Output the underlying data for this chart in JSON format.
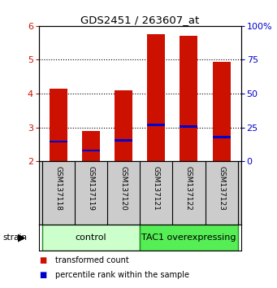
{
  "title": "GDS2451 / 263607_at",
  "samples": [
    "GSM137118",
    "GSM137119",
    "GSM137120",
    "GSM137121",
    "GSM137122",
    "GSM137123"
  ],
  "bar_bottom": 2.0,
  "transformed_counts": [
    4.15,
    2.9,
    4.1,
    5.75,
    5.72,
    4.95
  ],
  "percentile_values": [
    2.58,
    2.32,
    2.62,
    3.07,
    3.03,
    2.72
  ],
  "ylim": [
    2.0,
    6.0
  ],
  "yticks_left": [
    2,
    3,
    4,
    5,
    6
  ],
  "yticks_right": [
    0,
    25,
    50,
    75,
    100
  ],
  "yticks_right_pos": [
    2.0,
    3.0,
    4.0,
    5.0,
    6.0
  ],
  "groups": [
    {
      "label": "control",
      "indices": [
        0,
        1,
        2
      ],
      "color": "#ccffcc",
      "border": "#228822"
    },
    {
      "label": "TAC1 overexpressing",
      "indices": [
        3,
        4,
        5
      ],
      "color": "#55ee55",
      "border": "#228822"
    }
  ],
  "bar_color": "#cc1100",
  "percentile_color": "#0000cc",
  "bar_width": 0.55,
  "grid_color": "#000000",
  "tick_color_left": "#cc1100",
  "tick_color_right": "#0000cc",
  "bg_color": "#ffffff",
  "plot_bg": "#ffffff",
  "xlabel_bg": "#cccccc",
  "strain_label": "strain",
  "legend_items": [
    {
      "color": "#cc1100",
      "label": "transformed count"
    },
    {
      "color": "#0000cc",
      "label": "percentile rank within the sample"
    }
  ]
}
